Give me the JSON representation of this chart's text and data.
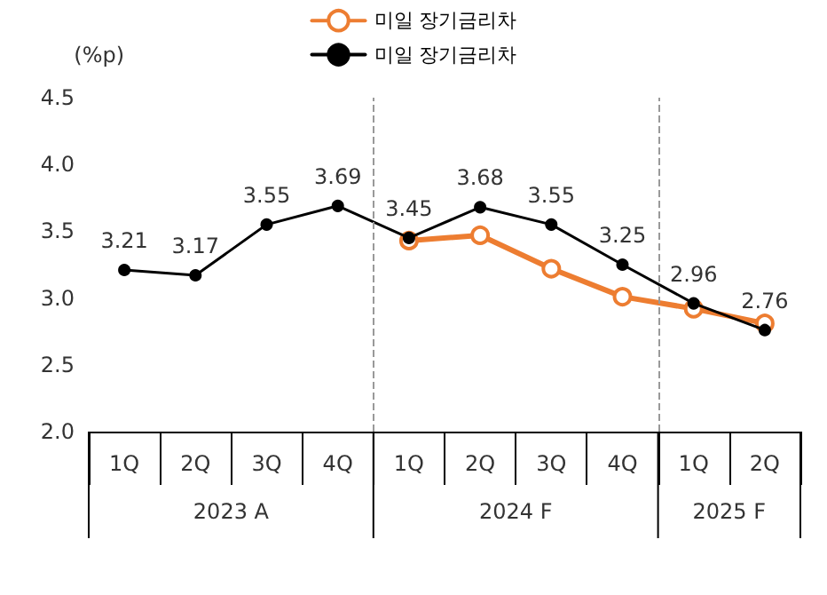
{
  "chart_data": {
    "type": "line",
    "ylabel": "(%p)",
    "categories": [
      "1Q",
      "2Q",
      "3Q",
      "4Q",
      "1Q",
      "2Q",
      "3Q",
      "4Q",
      "1Q",
      "2Q"
    ],
    "series": [
      {
        "name": "미일 장기금리차",
        "color": "#ed7d31",
        "values": [
          null,
          null,
          null,
          null,
          3.43,
          3.47,
          3.22,
          3.01,
          2.92,
          2.81
        ]
      },
      {
        "name": "미일 장기금리차",
        "color": "#000000",
        "values": [
          3.21,
          3.17,
          3.55,
          3.69,
          3.45,
          3.68,
          3.55,
          3.25,
          2.96,
          2.76
        ],
        "value_labels": [
          "3.21",
          "3.17",
          "3.55",
          "3.69",
          "3.45",
          "3.68",
          "3.55",
          "3.25",
          "2.96",
          "2.76"
        ]
      }
    ],
    "ylim": [
      2,
      4.5
    ],
    "yticks": [
      {
        "value": 2,
        "label": "2.0"
      },
      {
        "value": 2.5,
        "label": "2.5"
      },
      {
        "value": 3,
        "label": "3.0"
      },
      {
        "value": 3.5,
        "label": "3.5"
      },
      {
        "value": 4,
        "label": "4.0"
      },
      {
        "value": 4.5,
        "label": "4.5"
      }
    ],
    "annotations": [
      "2023 A",
      "2024 F",
      "2025 F"
    ],
    "grid": false,
    "legend": "top",
    "marker": "circle",
    "line_style": "solid"
  }
}
